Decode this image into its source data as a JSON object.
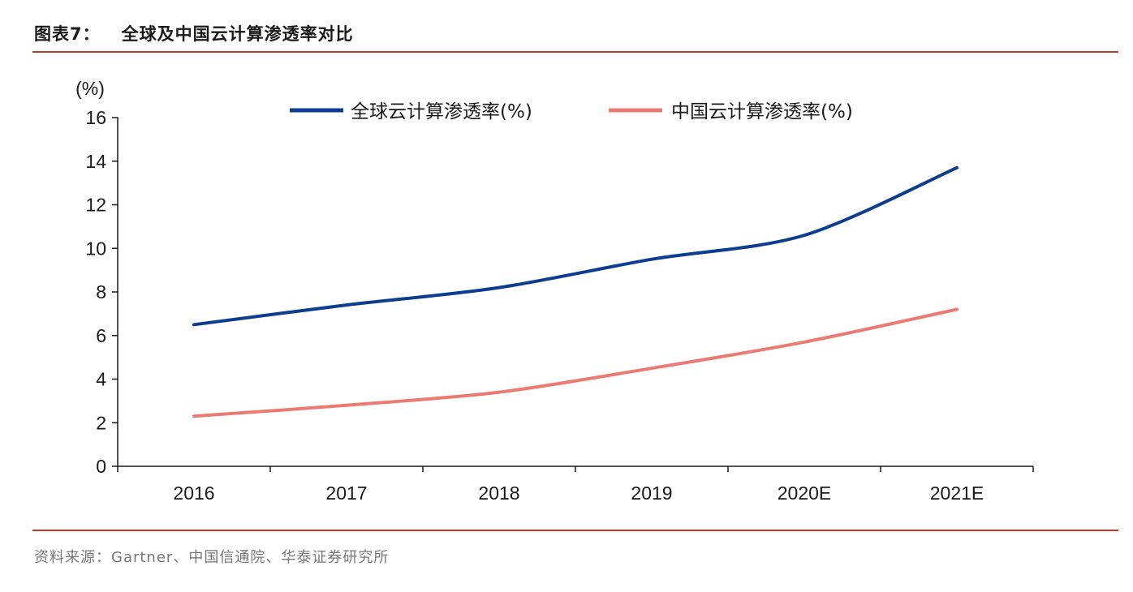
{
  "figure": {
    "label": "图表7：",
    "title": "全球及中国云计算渗透率对比",
    "source": "资料来源：Gartner、中国信通院、华泰证券研究所"
  },
  "colors": {
    "rule": "#c0392b",
    "global_series": "#0d3d8f",
    "china_series": "#eb7a72",
    "axis": "#1a1a1a"
  },
  "chart_data": {
    "type": "line",
    "title": "全球及中国云计算渗透率对比",
    "ylabel": "(%)",
    "xlabel": "",
    "categories": [
      "2016",
      "2017",
      "2018",
      "2019",
      "2020E",
      "2021E"
    ],
    "ylim": [
      0,
      16
    ],
    "yticks": [
      0,
      2,
      4,
      6,
      8,
      10,
      12,
      14,
      16
    ],
    "grid": false,
    "legend_position": "top-center",
    "series": [
      {
        "name": "全球云计算渗透率(%)",
        "values": [
          6.5,
          7.4,
          8.2,
          9.5,
          10.6,
          13.7
        ]
      },
      {
        "name": "中国云计算渗透率(%)",
        "values": [
          2.3,
          2.8,
          3.4,
          4.5,
          5.7,
          7.2
        ]
      }
    ]
  }
}
